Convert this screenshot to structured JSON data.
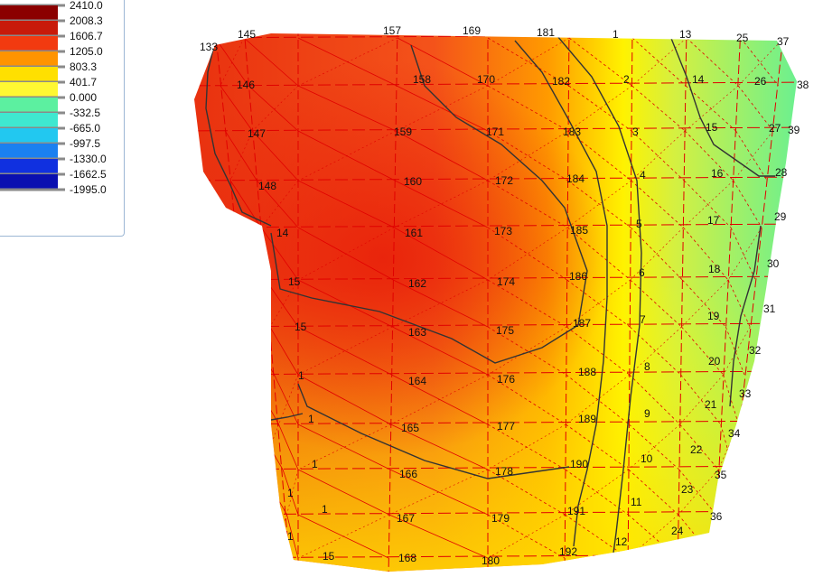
{
  "legend": {
    "levels": [
      {
        "label": "2410.0",
        "color": "#ffffff"
      },
      {
        "label": "2008.3",
        "color": "#8b0000"
      },
      {
        "label": "1606.7",
        "color": "#c81a0a"
      },
      {
        "label": "1205.0",
        "color": "#f23a10"
      },
      {
        "label": "803.3",
        "color": "#ff9400"
      },
      {
        "label": "401.7",
        "color": "#ffe000"
      },
      {
        "label": "0.000",
        "color": "#fff832"
      },
      {
        "label": "-332.5",
        "color": "#5cf0a0"
      },
      {
        "label": "-665.0",
        "color": "#3fe8d0"
      },
      {
        "label": "-997.5",
        "color": "#22c8f0"
      },
      {
        "label": "-1330.0",
        "color": "#1b80f0"
      },
      {
        "label": "-1662.5",
        "color": "#1030e0"
      },
      {
        "label": "-1995.0",
        "color": "#0a0fb0"
      }
    ]
  },
  "node_labels": [
    "133",
    "145",
    "157",
    "169",
    "181",
    "1",
    "13",
    "25",
    "37",
    "38",
    "146",
    "158",
    "170",
    "182",
    "2",
    "14",
    "26",
    "147",
    "159",
    "171",
    "183",
    "3",
    "15",
    "27",
    "39",
    "148",
    "160",
    "172",
    "184",
    "4",
    "16",
    "28",
    "14",
    "161",
    "173",
    "185",
    "5",
    "17",
    "29",
    "15",
    "162",
    "174",
    "186",
    "6",
    "18",
    "30",
    "15",
    "163",
    "175",
    "187",
    "7",
    "19",
    "31",
    "1",
    "164",
    "176",
    "188",
    "8",
    "20",
    "32",
    "33",
    "1",
    "165",
    "177",
    "189",
    "9",
    "21",
    "34",
    "1",
    "166",
    "178",
    "190",
    "10",
    "22",
    "35",
    "1",
    "1",
    "167",
    "179",
    "191",
    "11",
    "23",
    "36",
    "1",
    "15",
    "168",
    "180",
    "192",
    "12",
    "24"
  ],
  "colors": {
    "mesh_line": "#e00000",
    "contour_line": "#333333",
    "deep_red": "#e3260e",
    "orange": "#ff8c00",
    "yellow": "#fff200",
    "green": "#5ef08a"
  }
}
